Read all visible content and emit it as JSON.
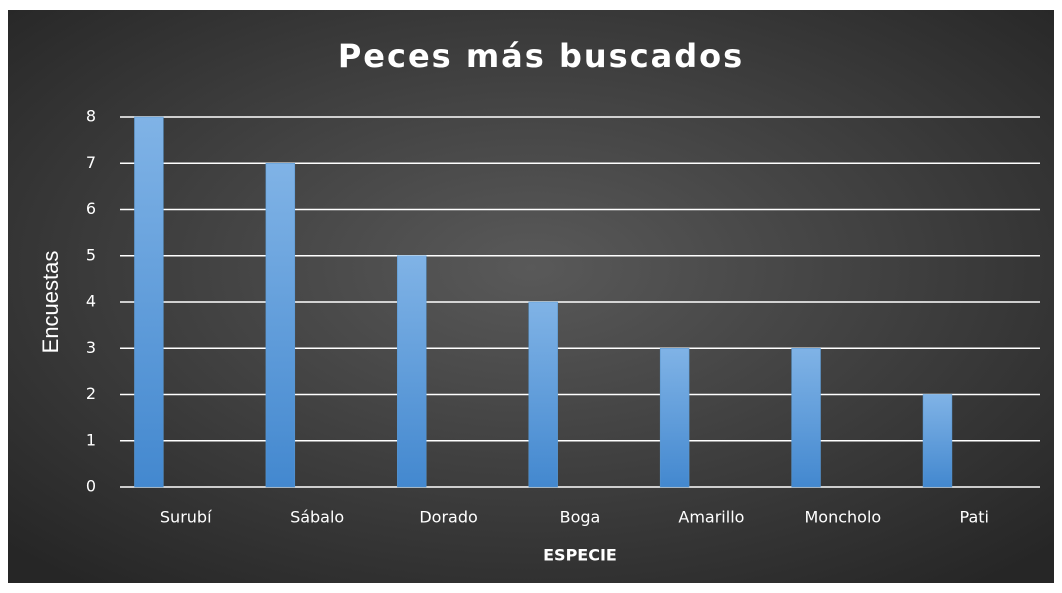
{
  "chart_data": {
    "type": "bar",
    "title": "Peces más buscados",
    "x_label": "ESPECIE",
    "y_label": "Encuestas",
    "categories": [
      "Surubí",
      "Sábalo",
      "Dorado",
      "Boga",
      "Amarillo",
      "Moncholo",
      "Pati"
    ],
    "values": [
      8,
      7,
      5,
      4,
      3,
      3,
      2
    ],
    "color": "#5b9bd5",
    "ylim": [
      0,
      8
    ],
    "yticks": [
      0,
      1,
      2,
      3,
      4,
      5,
      6,
      7,
      8
    ],
    "grid": true
  }
}
